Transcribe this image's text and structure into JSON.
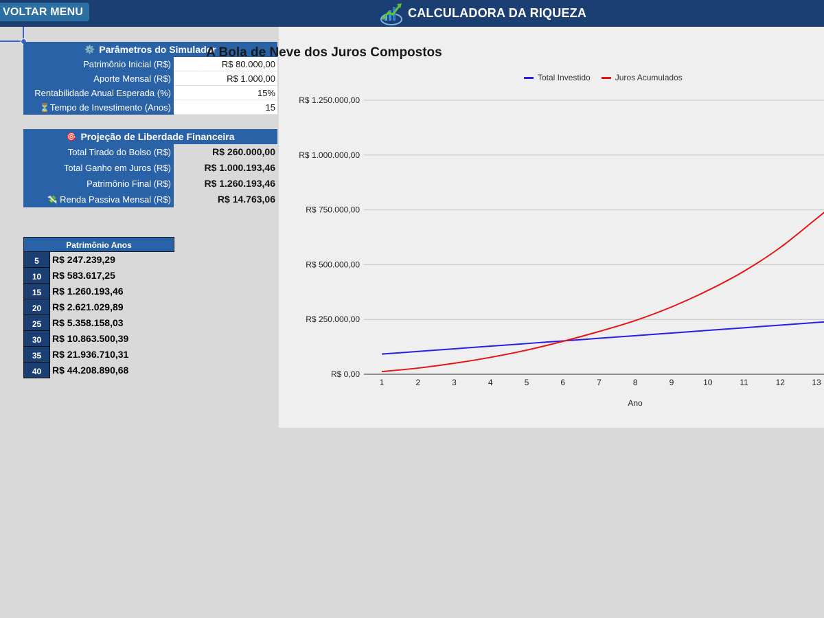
{
  "header": {
    "back_label": "VOLTAR MENU",
    "title": "CALCULADORA DA RIQUEZA",
    "logo_icon": "growth-chart-logo-icon"
  },
  "params": {
    "title": "Parâmetros do Simulador",
    "icon": "gear-icon",
    "rows": [
      {
        "label": "Patrimônio Inicial (R$)",
        "value": "R$ 80.000,00"
      },
      {
        "label": "Aporte Mensal (R$)",
        "value": "R$ 1.000,00"
      },
      {
        "label": "Rentabilidade Anual Esperada (%)",
        "value": "15%"
      },
      {
        "label": "Tempo de Investimento (Anos)",
        "value": "15",
        "icon": "hourglass-icon"
      }
    ]
  },
  "projection": {
    "title": "Projeção de Liberdade Financeira",
    "icon": "target-icon",
    "rows": [
      {
        "label": "Total Tirado do Bolso (R$)",
        "value": "R$ 260.000,00"
      },
      {
        "label": "Total Ganho em Juros (R$)",
        "value": "R$ 1.000.193,46"
      },
      {
        "label": "Patrimônio Final (R$)",
        "value": "R$ 1.260.193,46"
      },
      {
        "label": "Renda Passiva Mensal (R$)",
        "value": "R$ 14.763,06",
        "icon": "money-wings-icon"
      }
    ]
  },
  "years_table": {
    "header": "Patrimônio Anos",
    "rows": [
      {
        "year": "5",
        "value": "R$ 247.239,29"
      },
      {
        "year": "10",
        "value": "R$ 583.617,25"
      },
      {
        "year": "15",
        "value": "R$ 1.260.193,46"
      },
      {
        "year": "20",
        "value": "R$ 2.621.029,89"
      },
      {
        "year": "25",
        "value": "R$ 5.358.158,03"
      },
      {
        "year": "30",
        "value": "R$ 10.863.500,39"
      },
      {
        "year": "35",
        "value": "R$ 21.936.710,31"
      },
      {
        "year": "40",
        "value": "R$ 44.208.890,68"
      }
    ]
  },
  "chart_data": {
    "type": "line",
    "title": "A Bola de Neve dos Juros Compostos",
    "xlabel": "Ano",
    "ylabel": "",
    "x": [
      1,
      2,
      3,
      4,
      5,
      6,
      7,
      8,
      9,
      10,
      11,
      12,
      13
    ],
    "ylim": [
      0,
      1250000
    ],
    "yticks": [
      "R$ 0,00",
      "R$ 250.000,00",
      "R$ 500.000,00",
      "R$ 750.000,00",
      "R$ 1.000.000,00",
      "R$ 1.250.000,00"
    ],
    "grid": true,
    "legend_position": "top",
    "series": [
      {
        "name": "Total Investido",
        "color": "#2a1ee6",
        "values": [
          92000,
          104000,
          116000,
          128000,
          140000,
          152000,
          164000,
          176000,
          188000,
          200000,
          212000,
          224000,
          236000
        ]
      },
      {
        "name": "Juros Acumulados",
        "color": "#e61414",
        "values": [
          12000,
          28000,
          50000,
          77000,
          110000,
          150000,
          195000,
          245000,
          307000,
          382000,
          470000,
          578000,
          710000
        ]
      }
    ]
  }
}
